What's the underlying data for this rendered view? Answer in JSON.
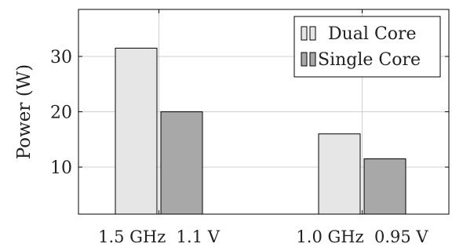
{
  "chart_data": {
    "type": "bar",
    "title": "",
    "xlabel": "",
    "ylabel": "Power (W)",
    "categories": [
      "1.5 GHz  1.1 V",
      "1.0 GHz  0.95 V"
    ],
    "series": [
      {
        "name": "Dual Core",
        "values": [
          31.5,
          16
        ],
        "color": "#e6e6e6"
      },
      {
        "name": "Single Core",
        "values": [
          20,
          11.5
        ],
        "color": "#a8a8a8"
      }
    ],
    "yticks": [
      10,
      20,
      30
    ],
    "ylim": [
      1.5,
      38.5
    ],
    "grid": "horizontal major and vertical at categories",
    "legend_position": "top-right"
  }
}
